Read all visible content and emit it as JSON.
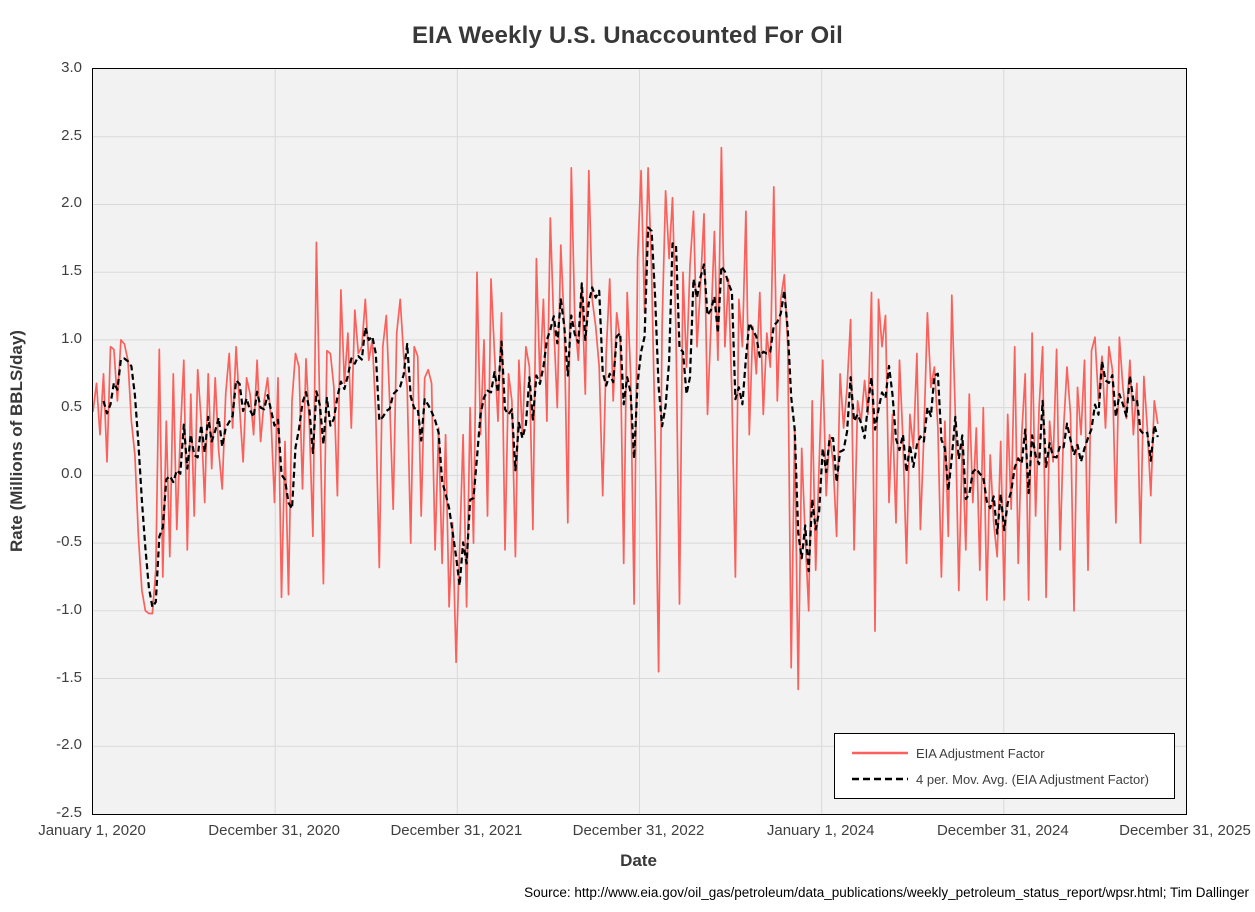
{
  "source_note": "Source: http://www.eia.gov/oil_gas/petroleum/data_publications/weekly_petroleum_status_report/wpsr.html; Tim Dallinger",
  "chart_data": {
    "type": "line",
    "title": "EIA Weekly U.S. Unaccounted For Oil",
    "xlabel": "Date",
    "ylabel": "Rate (Millions of BBLS/day)",
    "ylim": [
      -2.5,
      3.0
    ],
    "y_tick_step": 0.5,
    "x_tick_labels": [
      "January 1, 2020",
      "December 31, 2020",
      "December 31, 2021",
      "December 31, 2022",
      "January 1, 2024",
      "December 31, 2024",
      "December 31, 2025"
    ],
    "x_span_years": 6,
    "frequency": "weekly",
    "grid": true,
    "plot_background": "#f2f2f2",
    "grid_color": "#d9d9d9",
    "axis_border_color": "#000000",
    "legend_position": "inside-bottom-right",
    "series": [
      {
        "name": "EIA Adjustment Factor",
        "color": "#fa615c",
        "style": "solid",
        "values": [
          0.47,
          0.68,
          0.3,
          0.75,
          0.1,
          0.95,
          0.93,
          0.55,
          1.0,
          0.97,
          0.85,
          0.4,
          0.15,
          -0.45,
          -0.85,
          -1.0,
          -1.02,
          -1.02,
          -0.7,
          0.93,
          -0.75,
          0.4,
          -0.6,
          0.75,
          -0.4,
          0.3,
          0.85,
          -0.55,
          0.6,
          -0.3,
          0.78,
          0.4,
          -0.2,
          0.75,
          0.05,
          0.72,
          0.18,
          -0.1,
          0.6,
          0.9,
          0.35,
          0.95,
          0.5,
          0.1,
          0.72,
          0.6,
          0.3,
          0.85,
          0.25,
          0.55,
          0.72,
          0.4,
          -0.2,
          0.72,
          -0.9,
          0.25,
          -0.88,
          0.55,
          0.9,
          0.8,
          -0.1,
          0.86,
          0.35,
          -0.45,
          1.72,
          0.45,
          -0.8,
          0.92,
          0.9,
          0.65,
          -0.15,
          1.37,
          0.68,
          1.05,
          0.35,
          1.22,
          0.9,
          0.95,
          1.3,
          0.85,
          1.0,
          0.45,
          -0.68,
          0.95,
          1.18,
          0.52,
          -0.25,
          1.05,
          1.3,
          0.88,
          0.65,
          -0.5,
          0.95,
          0.88,
          -0.3,
          0.72,
          0.78,
          0.68,
          -0.55,
          0.35,
          -0.65,
          0.3,
          -0.97,
          -0.35,
          -1.38,
          -0.55,
          0.3,
          -0.97,
          0.5,
          -0.5,
          1.5,
          0.3,
          1.0,
          -0.3,
          1.45,
          0.9,
          0.4,
          1.2,
          -0.55,
          0.75,
          0.55,
          -0.6,
          0.85,
          0.3,
          0.95,
          0.8,
          -0.4,
          1.6,
          0.7,
          1.3,
          0.4,
          1.9,
          1.1,
          0.5,
          1.7,
          1.1,
          -0.35,
          2.27,
          1.15,
          0.85,
          1.4,
          0.6,
          2.25,
          1.3,
          1.1,
          0.8,
          -0.15,
          0.9,
          1.45,
          0.55,
          1.2,
          1.0,
          -0.65,
          1.35,
          0.75,
          -0.95,
          1.6,
          2.25,
          1.2,
          2.27,
          1.5,
          0.3,
          -1.45,
          1.1,
          2.1,
          1.6,
          2.05,
          1.05,
          -0.95,
          1.5,
          0.8,
          1.55,
          1.95,
          0.95,
          1.4,
          1.93,
          0.45,
          1.1,
          1.8,
          0.85,
          2.42,
          0.95,
          1.45,
          0.6,
          -0.75,
          1.3,
          0.95,
          1.95,
          0.3,
          1.1,
          0.75,
          1.35,
          0.45,
          1.05,
          0.8,
          2.13,
          0.55,
          1.3,
          1.48,
          0.95,
          -1.42,
          0.35,
          -1.58,
          0.2,
          -0.45,
          -1.0,
          0.55,
          -0.7,
          0.1,
          0.85,
          -0.15,
          0.3,
          0.1,
          -0.45,
          0.75,
          0.35,
          0.65,
          1.15,
          -0.55,
          0.55,
          0.4,
          0.7,
          0.45,
          1.35,
          -1.15,
          1.3,
          0.95,
          1.18,
          -0.2,
          0.45,
          -0.35,
          0.85,
          0.25,
          -0.65,
          0.45,
          0.2,
          0.9,
          -0.4,
          0.3,
          1.2,
          0.65,
          0.8,
          0.35,
          -0.75,
          0.4,
          -0.45,
          1.33,
          0.45,
          -0.85,
          0.25,
          -0.55,
          0.6,
          -0.2,
          0.35,
          -0.7,
          0.5,
          -0.92,
          0.15,
          -0.35,
          -0.6,
          0.25,
          -0.92,
          0.45,
          -0.25,
          0.95,
          -0.65,
          0.3,
          0.75,
          -0.92,
          1.05,
          -0.3,
          0.5,
          0.95,
          -0.9,
          0.4,
          0.1,
          0.93,
          -0.55,
          0.35,
          0.8,
          0.45,
          -1.0,
          0.65,
          0.3,
          0.85,
          -0.7,
          0.92,
          1.02,
          0.55,
          0.88,
          0.35,
          0.95,
          0.78,
          -0.35,
          1.02,
          0.65,
          0.42,
          0.85,
          0.3,
          0.68,
          -0.5,
          0.73,
          0.35,
          -0.15,
          0.55,
          0.38
        ]
      },
      {
        "name": "4 per. Mov. Avg. (EIA Adjustment Factor)",
        "color": "#000000",
        "style": "dashed",
        "derived": "4-period moving average of EIA Adjustment Factor"
      }
    ]
  }
}
